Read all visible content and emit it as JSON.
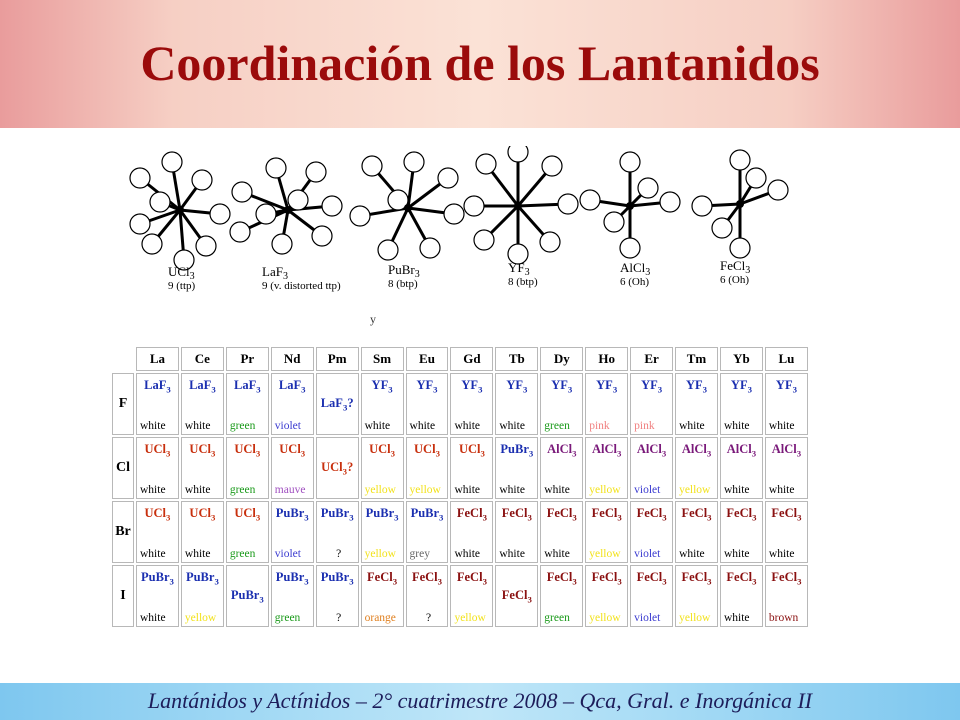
{
  "title": "Coordinación de los Lantanidos",
  "structures": [
    {
      "formula": "UCl3",
      "cn": "9 (ttp)"
    },
    {
      "formula": "LaF3",
      "cn": "9 (v. distorted ttp)"
    },
    {
      "formula": "PuBr3",
      "cn": "8 (btp)"
    },
    {
      "formula": "YF3",
      "cn": "8 (btp)"
    },
    {
      "formula": "AlCl3",
      "cn": "6 (Oh)"
    },
    {
      "formula": "FeCl3",
      "cn": "6 (Oh)"
    }
  ],
  "stray_mark": "y",
  "table": {
    "elements": [
      "La",
      "Ce",
      "Pr",
      "Nd",
      "Pm",
      "Sm",
      "Eu",
      "Gd",
      "Tb",
      "Dy",
      "Ho",
      "Er",
      "Tm",
      "Yb",
      "Lu"
    ],
    "rows": [
      {
        "halide": "F",
        "cells": [
          {
            "compound": "LaF3",
            "colour": "white"
          },
          {
            "compound": "LaF3",
            "colour": "white"
          },
          {
            "compound": "LaF3",
            "colour": "green"
          },
          {
            "compound": "LaF3",
            "colour": "violet"
          },
          {
            "compound": "LaF3?",
            "colour": ""
          },
          {
            "compound": "YF3",
            "colour": "white"
          },
          {
            "compound": "YF3",
            "colour": "white"
          },
          {
            "compound": "YF3",
            "colour": "white"
          },
          {
            "compound": "YF3",
            "colour": "white"
          },
          {
            "compound": "YF3",
            "colour": "green"
          },
          {
            "compound": "YF3",
            "colour": "pink"
          },
          {
            "compound": "YF3",
            "colour": "pink"
          },
          {
            "compound": "YF3",
            "colour": "white"
          },
          {
            "compound": "YF3",
            "colour": "white"
          },
          {
            "compound": "YF3",
            "colour": "white"
          }
        ]
      },
      {
        "halide": "Cl",
        "cells": [
          {
            "compound": "UCl3",
            "colour": "white"
          },
          {
            "compound": "UCl3",
            "colour": "white"
          },
          {
            "compound": "UCl3",
            "colour": "green"
          },
          {
            "compound": "UCl3",
            "colour": "mauve"
          },
          {
            "compound": "UCl3?",
            "colour": ""
          },
          {
            "compound": "UCl3",
            "colour": "yellow"
          },
          {
            "compound": "UCl3",
            "colour": "yellow"
          },
          {
            "compound": "UCl3",
            "colour": "white"
          },
          {
            "compound": "PuBr3",
            "colour": "white"
          },
          {
            "compound": "AlCl3",
            "colour": "white"
          },
          {
            "compound": "AlCl3",
            "colour": "yellow"
          },
          {
            "compound": "AlCl3",
            "colour": "violet"
          },
          {
            "compound": "AlCl3",
            "colour": "yellow"
          },
          {
            "compound": "AlCl3",
            "colour": "white"
          },
          {
            "compound": "AlCl3",
            "colour": "white"
          }
        ]
      },
      {
        "halide": "Br",
        "cells": [
          {
            "compound": "UCl3",
            "colour": "white"
          },
          {
            "compound": "UCl3",
            "colour": "white"
          },
          {
            "compound": "UCl3",
            "colour": "green"
          },
          {
            "compound": "PuBr3",
            "colour": "violet"
          },
          {
            "compound": "PuBr3",
            "colour": "?"
          },
          {
            "compound": "PuBr3",
            "colour": "yellow"
          },
          {
            "compound": "PuBr3",
            "colour": "grey"
          },
          {
            "compound": "FeCl3",
            "colour": "white"
          },
          {
            "compound": "FeCl3",
            "colour": "white"
          },
          {
            "compound": "FeCl3",
            "colour": "white"
          },
          {
            "compound": "FeCl3",
            "colour": "yellow"
          },
          {
            "compound": "FeCl3",
            "colour": "violet"
          },
          {
            "compound": "FeCl3",
            "colour": "white"
          },
          {
            "compound": "FeCl3",
            "colour": "white"
          },
          {
            "compound": "FeCl3",
            "colour": "white"
          }
        ]
      },
      {
        "halide": "I",
        "cells": [
          {
            "compound": "PuBr3",
            "colour": "white"
          },
          {
            "compound": "PuBr3",
            "colour": "yellow"
          },
          {
            "compound": "PuBr3",
            "colour": ""
          },
          {
            "compound": "PuBr3",
            "colour": "green"
          },
          {
            "compound": "PuBr3",
            "colour": "?"
          },
          {
            "compound": "FeCl3",
            "colour": "orange"
          },
          {
            "compound": "FeCl3",
            "colour": "?"
          },
          {
            "compound": "FeCl3",
            "colour": "yellow"
          },
          {
            "compound": "FeCl3",
            "colour": ""
          },
          {
            "compound": "FeCl3",
            "colour": "green"
          },
          {
            "compound": "FeCl3",
            "colour": "yellow"
          },
          {
            "compound": "FeCl3",
            "colour": "violet"
          },
          {
            "compound": "FeCl3",
            "colour": "yellow"
          },
          {
            "compound": "FeCl3",
            "colour": "white"
          },
          {
            "compound": "FeCl3",
            "colour": "brown"
          }
        ]
      }
    ],
    "compound_colors": {
      "LaF3": "#1b2fb0",
      "YF3": "#1b2fb0",
      "UCl3": "#c8300e",
      "PuBr3": "#1b2fb0",
      "AlCl3": "#7a1a7a",
      "FeCl3": "#8a1010"
    },
    "colour_text_colors": {
      "white": "#000000",
      "green": "#1a9a1a",
      "violet": "#3b3bd0",
      "pink": "#f08080",
      "mauve": "#a050c0",
      "yellow": "#f2e21c",
      "grey": "#666666",
      "orange": "#e08020",
      "brown": "#8a1010",
      "?": "#000000"
    }
  },
  "footer": "Lantánidos y Actínidos – 2° cuatrimestre 2008 – Qca, Gral. e Inorgánica II"
}
